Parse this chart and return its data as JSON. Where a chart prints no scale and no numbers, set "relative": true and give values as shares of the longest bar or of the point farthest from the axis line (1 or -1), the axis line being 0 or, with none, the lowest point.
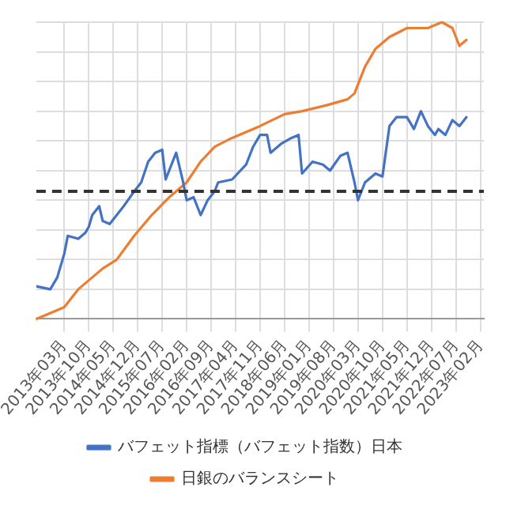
{
  "chart_data": {
    "type": "line",
    "relative": true,
    "grid": true,
    "legend": "bottom",
    "marker": "none",
    "line_style": "solid",
    "xlim": [
      "2012-07",
      "2023-03"
    ],
    "xticks": [
      {
        "value": "2013-03",
        "label": "2013年03月"
      },
      {
        "value": "2013-10",
        "label": "2013年10月"
      },
      {
        "value": "2014-05",
        "label": "2014年05月"
      },
      {
        "value": "2014-12",
        "label": "2014年12月"
      },
      {
        "value": "2015-07",
        "label": "2015年07月"
      },
      {
        "value": "2016-02",
        "label": "2016年02月"
      },
      {
        "value": "2016-09",
        "label": "2016年09月"
      },
      {
        "value": "2017-04",
        "label": "2017年04月"
      },
      {
        "value": "2017-11",
        "label": "2017年11月"
      },
      {
        "value": "2018-06",
        "label": "2018年06月"
      },
      {
        "value": "2019-01",
        "label": "2019年01月"
      },
      {
        "value": "2019-08",
        "label": "2019年08月"
      },
      {
        "value": "2020-03",
        "label": "2020年03月"
      },
      {
        "value": "2020-10",
        "label": "2020年10月"
      },
      {
        "value": "2021-05",
        "label": "2021年05月"
      },
      {
        "value": "2021-12",
        "label": "2021年12月"
      },
      {
        "value": "2022-07",
        "label": "2022年07月"
      },
      {
        "value": "2023-02",
        "label": "2023年02月"
      }
    ],
    "ref_lines": [
      {
        "axis": "y",
        "value": 0.43,
        "color": "#333333",
        "line_style": "dashed"
      }
    ],
    "series": [
      {
        "name": "バフェット指標（バフェット指数）日本",
        "color": "#4472c4",
        "x": [
          "2012-07",
          "2012-11",
          "2013-01",
          "2013-03",
          "2013-04",
          "2013-07",
          "2013-09",
          "2013-10",
          "2013-11",
          "2014-01",
          "2014-02",
          "2014-04",
          "2014-06",
          "2014-08",
          "2014-11",
          "2015-01",
          "2015-03",
          "2015-05",
          "2015-07",
          "2015-08",
          "2015-10",
          "2015-11",
          "2016-01",
          "2016-02",
          "2016-04",
          "2016-06",
          "2016-08",
          "2016-10",
          "2016-11",
          "2017-03",
          "2017-07",
          "2017-09",
          "2017-11",
          "2018-01",
          "2018-02",
          "2018-05",
          "2018-08",
          "2018-10",
          "2018-11",
          "2019-02",
          "2019-05",
          "2019-07",
          "2019-10",
          "2019-12",
          "2020-02",
          "2020-03",
          "2020-05",
          "2020-08",
          "2020-10",
          "2020-12",
          "2021-02",
          "2021-05",
          "2021-07",
          "2021-09",
          "2021-11",
          "2022-01",
          "2022-02",
          "2022-04",
          "2022-06",
          "2022-08",
          "2022-10"
        ],
        "values": [
          0.11,
          0.1,
          0.14,
          0.22,
          0.28,
          0.27,
          0.29,
          0.31,
          0.35,
          0.38,
          0.33,
          0.32,
          0.35,
          0.38,
          0.43,
          0.46,
          0.53,
          0.56,
          0.57,
          0.47,
          0.53,
          0.56,
          0.46,
          0.4,
          0.41,
          0.35,
          0.4,
          0.43,
          0.46,
          0.47,
          0.52,
          0.58,
          0.62,
          0.62,
          0.56,
          0.59,
          0.61,
          0.62,
          0.49,
          0.53,
          0.52,
          0.5,
          0.55,
          0.56,
          0.46,
          0.4,
          0.46,
          0.49,
          0.48,
          0.65,
          0.68,
          0.68,
          0.64,
          0.7,
          0.65,
          0.62,
          0.64,
          0.62,
          0.67,
          0.65,
          0.68
        ]
      },
      {
        "name": "日銀のバランスシート",
        "color": "#ed7d31",
        "x": [
          "2012-07",
          "2013-03",
          "2013-07",
          "2014-02",
          "2014-06",
          "2014-11",
          "2015-04",
          "2015-09",
          "2016-02",
          "2016-06",
          "2016-10",
          "2017-03",
          "2017-11",
          "2018-06",
          "2018-11",
          "2019-06",
          "2019-12",
          "2020-02",
          "2020-05",
          "2020-08",
          "2020-12",
          "2021-05",
          "2021-11",
          "2022-03",
          "2022-06",
          "2022-08",
          "2022-10"
        ],
        "values": [
          0,
          0.04,
          0.1,
          0.17,
          0.2,
          0.28,
          0.35,
          0.41,
          0.46,
          0.53,
          0.58,
          0.61,
          0.65,
          0.69,
          0.7,
          0.72,
          0.74,
          0.76,
          0.85,
          0.91,
          0.95,
          0.98,
          0.98,
          1,
          0.98,
          0.92,
          0.94
        ]
      }
    ]
  }
}
